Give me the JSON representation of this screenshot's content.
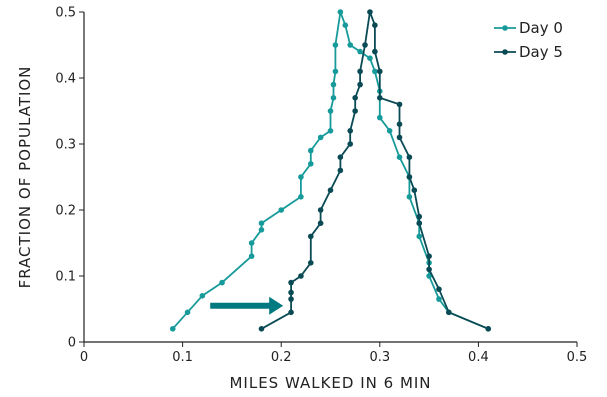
{
  "chart_data": {
    "type": "line",
    "title": "",
    "xlabel": "MILES WALKED IN 6 MIN",
    "ylabel": "FRACTION OF POPULATION",
    "xlim": [
      0,
      0.5
    ],
    "ylim": [
      0,
      0.5
    ],
    "xticks": [
      "0",
      "0.1",
      "0.2",
      "0.3",
      "0.4",
      "0.5"
    ],
    "yticks": [
      "0",
      "0.1",
      "0.2",
      "0.3",
      "0.4",
      "0.5"
    ],
    "grid": false,
    "legend_position": "top-right",
    "annotation": {
      "type": "arrow",
      "from": [
        0.128,
        0.055
      ],
      "to": [
        0.202,
        0.055
      ],
      "color": "#007a80"
    },
    "series": [
      {
        "name": "Day 0",
        "color": "#179a9a",
        "x": [
          0.09,
          0.105,
          0.12,
          0.14,
          0.17,
          0.17,
          0.18,
          0.18,
          0.2,
          0.22,
          0.22,
          0.23,
          0.23,
          0.24,
          0.25,
          0.25,
          0.253,
          0.253,
          0.255,
          0.255,
          0.26,
          0.265,
          0.27,
          0.28,
          0.29,
          0.295,
          0.3,
          0.3,
          0.31,
          0.32,
          0.33,
          0.33,
          0.34,
          0.34,
          0.35,
          0.35,
          0.36,
          0.37,
          0.41
        ],
        "y": [
          0.02,
          0.045,
          0.07,
          0.09,
          0.13,
          0.15,
          0.17,
          0.18,
          0.2,
          0.22,
          0.25,
          0.27,
          0.29,
          0.31,
          0.32,
          0.35,
          0.37,
          0.39,
          0.41,
          0.45,
          0.5,
          0.48,
          0.45,
          0.44,
          0.43,
          0.41,
          0.38,
          0.34,
          0.32,
          0.28,
          0.25,
          0.22,
          0.18,
          0.16,
          0.12,
          0.1,
          0.065,
          0.045,
          0.02
        ]
      },
      {
        "name": "Day 5",
        "color": "#0a4a55",
        "x": [
          0.18,
          0.21,
          0.21,
          0.21,
          0.21,
          0.22,
          0.23,
          0.23,
          0.24,
          0.24,
          0.25,
          0.26,
          0.26,
          0.27,
          0.27,
          0.275,
          0.275,
          0.28,
          0.28,
          0.285,
          0.29,
          0.295,
          0.295,
          0.3,
          0.3,
          0.32,
          0.32,
          0.32,
          0.33,
          0.33,
          0.335,
          0.34,
          0.34,
          0.35,
          0.35,
          0.36,
          0.37,
          0.41
        ],
        "y": [
          0.02,
          0.045,
          0.065,
          0.075,
          0.09,
          0.1,
          0.12,
          0.16,
          0.18,
          0.2,
          0.23,
          0.26,
          0.28,
          0.3,
          0.32,
          0.35,
          0.37,
          0.39,
          0.41,
          0.45,
          0.5,
          0.48,
          0.44,
          0.41,
          0.37,
          0.36,
          0.33,
          0.31,
          0.28,
          0.25,
          0.23,
          0.19,
          0.18,
          0.13,
          0.11,
          0.08,
          0.045,
          0.02
        ]
      }
    ]
  }
}
